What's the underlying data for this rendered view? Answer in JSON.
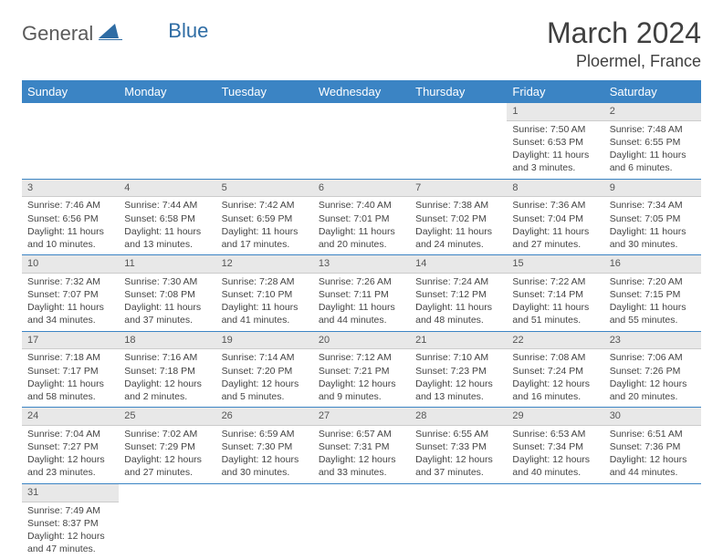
{
  "logo": {
    "text_general": "General",
    "text_blue": "Blue"
  },
  "title": "March 2024",
  "location": "Ploermel, France",
  "colors": {
    "header_bg": "#3b84c4",
    "header_text": "#ffffff",
    "daynum_bg": "#e8e8e8",
    "border": "#3b84c4",
    "body_text": "#444444",
    "title_text": "#404040"
  },
  "day_headers": [
    "Sunday",
    "Monday",
    "Tuesday",
    "Wednesday",
    "Thursday",
    "Friday",
    "Saturday"
  ],
  "weeks": [
    [
      null,
      null,
      null,
      null,
      null,
      {
        "num": "1",
        "sunrise": "Sunrise: 7:50 AM",
        "sunset": "Sunset: 6:53 PM",
        "daylight": "Daylight: 11 hours and 3 minutes."
      },
      {
        "num": "2",
        "sunrise": "Sunrise: 7:48 AM",
        "sunset": "Sunset: 6:55 PM",
        "daylight": "Daylight: 11 hours and 6 minutes."
      }
    ],
    [
      {
        "num": "3",
        "sunrise": "Sunrise: 7:46 AM",
        "sunset": "Sunset: 6:56 PM",
        "daylight": "Daylight: 11 hours and 10 minutes."
      },
      {
        "num": "4",
        "sunrise": "Sunrise: 7:44 AM",
        "sunset": "Sunset: 6:58 PM",
        "daylight": "Daylight: 11 hours and 13 minutes."
      },
      {
        "num": "5",
        "sunrise": "Sunrise: 7:42 AM",
        "sunset": "Sunset: 6:59 PM",
        "daylight": "Daylight: 11 hours and 17 minutes."
      },
      {
        "num": "6",
        "sunrise": "Sunrise: 7:40 AM",
        "sunset": "Sunset: 7:01 PM",
        "daylight": "Daylight: 11 hours and 20 minutes."
      },
      {
        "num": "7",
        "sunrise": "Sunrise: 7:38 AM",
        "sunset": "Sunset: 7:02 PM",
        "daylight": "Daylight: 11 hours and 24 minutes."
      },
      {
        "num": "8",
        "sunrise": "Sunrise: 7:36 AM",
        "sunset": "Sunset: 7:04 PM",
        "daylight": "Daylight: 11 hours and 27 minutes."
      },
      {
        "num": "9",
        "sunrise": "Sunrise: 7:34 AM",
        "sunset": "Sunset: 7:05 PM",
        "daylight": "Daylight: 11 hours and 30 minutes."
      }
    ],
    [
      {
        "num": "10",
        "sunrise": "Sunrise: 7:32 AM",
        "sunset": "Sunset: 7:07 PM",
        "daylight": "Daylight: 11 hours and 34 minutes."
      },
      {
        "num": "11",
        "sunrise": "Sunrise: 7:30 AM",
        "sunset": "Sunset: 7:08 PM",
        "daylight": "Daylight: 11 hours and 37 minutes."
      },
      {
        "num": "12",
        "sunrise": "Sunrise: 7:28 AM",
        "sunset": "Sunset: 7:10 PM",
        "daylight": "Daylight: 11 hours and 41 minutes."
      },
      {
        "num": "13",
        "sunrise": "Sunrise: 7:26 AM",
        "sunset": "Sunset: 7:11 PM",
        "daylight": "Daylight: 11 hours and 44 minutes."
      },
      {
        "num": "14",
        "sunrise": "Sunrise: 7:24 AM",
        "sunset": "Sunset: 7:12 PM",
        "daylight": "Daylight: 11 hours and 48 minutes."
      },
      {
        "num": "15",
        "sunrise": "Sunrise: 7:22 AM",
        "sunset": "Sunset: 7:14 PM",
        "daylight": "Daylight: 11 hours and 51 minutes."
      },
      {
        "num": "16",
        "sunrise": "Sunrise: 7:20 AM",
        "sunset": "Sunset: 7:15 PM",
        "daylight": "Daylight: 11 hours and 55 minutes."
      }
    ],
    [
      {
        "num": "17",
        "sunrise": "Sunrise: 7:18 AM",
        "sunset": "Sunset: 7:17 PM",
        "daylight": "Daylight: 11 hours and 58 minutes."
      },
      {
        "num": "18",
        "sunrise": "Sunrise: 7:16 AM",
        "sunset": "Sunset: 7:18 PM",
        "daylight": "Daylight: 12 hours and 2 minutes."
      },
      {
        "num": "19",
        "sunrise": "Sunrise: 7:14 AM",
        "sunset": "Sunset: 7:20 PM",
        "daylight": "Daylight: 12 hours and 5 minutes."
      },
      {
        "num": "20",
        "sunrise": "Sunrise: 7:12 AM",
        "sunset": "Sunset: 7:21 PM",
        "daylight": "Daylight: 12 hours and 9 minutes."
      },
      {
        "num": "21",
        "sunrise": "Sunrise: 7:10 AM",
        "sunset": "Sunset: 7:23 PM",
        "daylight": "Daylight: 12 hours and 13 minutes."
      },
      {
        "num": "22",
        "sunrise": "Sunrise: 7:08 AM",
        "sunset": "Sunset: 7:24 PM",
        "daylight": "Daylight: 12 hours and 16 minutes."
      },
      {
        "num": "23",
        "sunrise": "Sunrise: 7:06 AM",
        "sunset": "Sunset: 7:26 PM",
        "daylight": "Daylight: 12 hours and 20 minutes."
      }
    ],
    [
      {
        "num": "24",
        "sunrise": "Sunrise: 7:04 AM",
        "sunset": "Sunset: 7:27 PM",
        "daylight": "Daylight: 12 hours and 23 minutes."
      },
      {
        "num": "25",
        "sunrise": "Sunrise: 7:02 AM",
        "sunset": "Sunset: 7:29 PM",
        "daylight": "Daylight: 12 hours and 27 minutes."
      },
      {
        "num": "26",
        "sunrise": "Sunrise: 6:59 AM",
        "sunset": "Sunset: 7:30 PM",
        "daylight": "Daylight: 12 hours and 30 minutes."
      },
      {
        "num": "27",
        "sunrise": "Sunrise: 6:57 AM",
        "sunset": "Sunset: 7:31 PM",
        "daylight": "Daylight: 12 hours and 33 minutes."
      },
      {
        "num": "28",
        "sunrise": "Sunrise: 6:55 AM",
        "sunset": "Sunset: 7:33 PM",
        "daylight": "Daylight: 12 hours and 37 minutes."
      },
      {
        "num": "29",
        "sunrise": "Sunrise: 6:53 AM",
        "sunset": "Sunset: 7:34 PM",
        "daylight": "Daylight: 12 hours and 40 minutes."
      },
      {
        "num": "30",
        "sunrise": "Sunrise: 6:51 AM",
        "sunset": "Sunset: 7:36 PM",
        "daylight": "Daylight: 12 hours and 44 minutes."
      }
    ],
    [
      {
        "num": "31",
        "sunrise": "Sunrise: 7:49 AM",
        "sunset": "Sunset: 8:37 PM",
        "daylight": "Daylight: 12 hours and 47 minutes."
      },
      null,
      null,
      null,
      null,
      null,
      null
    ]
  ]
}
